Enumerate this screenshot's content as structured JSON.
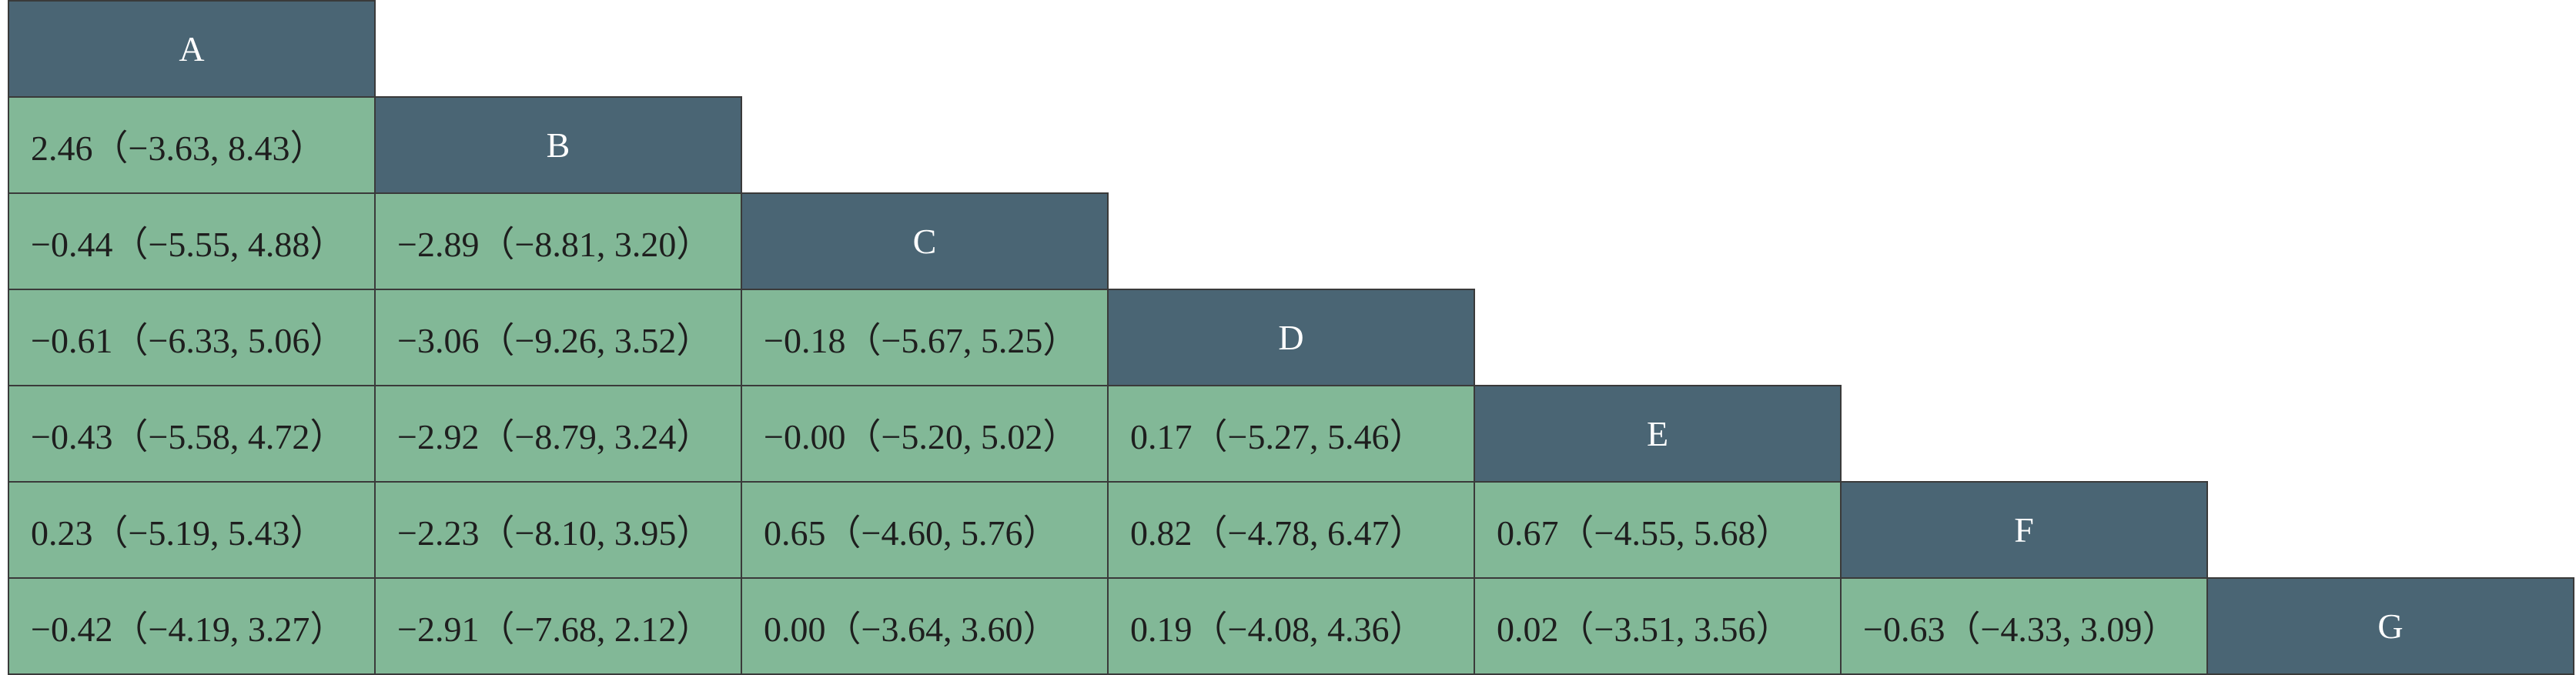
{
  "matrix": {
    "treatments": [
      "A",
      "B",
      "C",
      "D",
      "E",
      "F",
      "G"
    ],
    "rows": [
      [],
      [
        "2.46（−3.63, 8.43）"
      ],
      [
        "−0.44（−5.55, 4.88）",
        "−2.89（−8.81, 3.20）"
      ],
      [
        "−0.61（−6.33, 5.06）",
        "−3.06（−9.26, 3.52）",
        "−0.18（−5.67, 5.25）"
      ],
      [
        "−0.43（−5.58, 4.72）",
        "−2.92（−8.79, 3.24）",
        "−0.00（−5.20, 5.02）",
        "0.17（−5.27, 5.46）"
      ],
      [
        "0.23（−5.19, 5.43）",
        "−2.23（−8.10, 3.95）",
        "0.65（−4.60, 5.76）",
        "0.82（−4.78, 6.47）",
        "0.67（−4.55, 5.68）"
      ],
      [
        "−0.42（−4.19, 3.27）",
        "−2.91（−7.68, 2.12）",
        "0.00（−3.64, 3.60）",
        "0.19（−4.08, 4.36）",
        "0.02（−3.51, 3.56）",
        "−0.63（−4.33, 3.09）"
      ]
    ]
  },
  "colors": {
    "header_bg": "#4a6574",
    "header_text": "#ffffff",
    "cell_bg": "#82b897",
    "cell_text": "#1e1e1e",
    "border": "#3a3a3a"
  }
}
